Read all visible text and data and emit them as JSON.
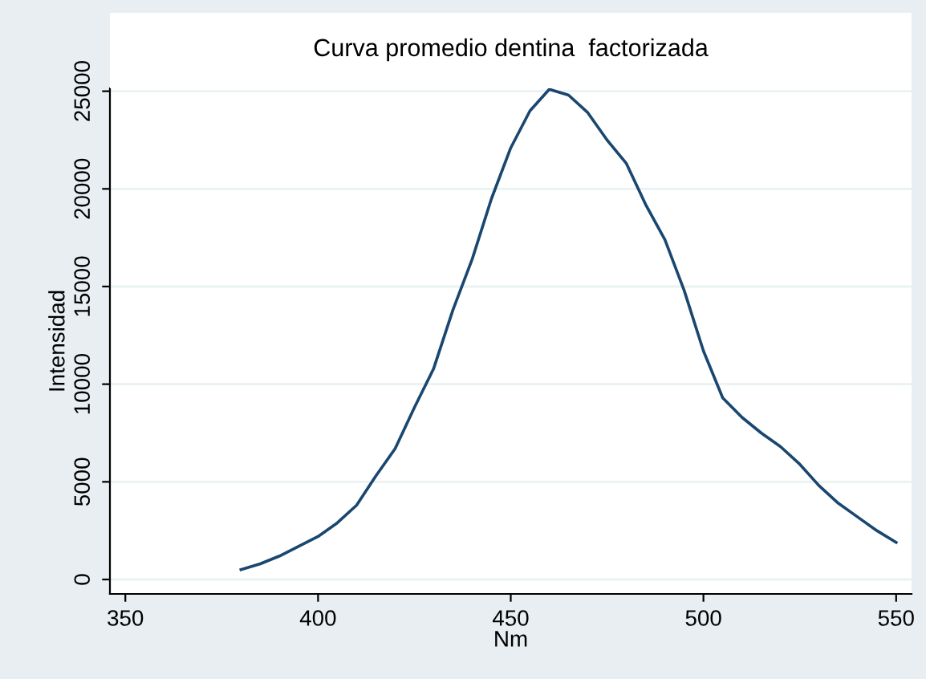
{
  "chart_data": {
    "type": "line",
    "title": "Curva promedio dentina  factorizada",
    "xlabel": "Nm",
    "ylabel": "Intensidad",
    "x": [
      380,
      385,
      390,
      395,
      400,
      405,
      410,
      415,
      420,
      425,
      430,
      435,
      440,
      445,
      450,
      455,
      460,
      465,
      470,
      475,
      480,
      485,
      490,
      495,
      500,
      505,
      510,
      515,
      520,
      525,
      530,
      535,
      540,
      545,
      550
    ],
    "series": [
      {
        "color": "#1a476f",
        "values": [
          500,
          800,
          1200,
          1700,
          2200,
          2900,
          3800,
          5300,
          6700,
          8800,
          10800,
          13800,
          16400,
          19500,
          22100,
          24000,
          25100,
          24800,
          23900,
          22500,
          21300,
          19200,
          17400,
          14800,
          11700,
          9300,
          8300,
          7500,
          6800,
          5900,
          4800,
          3900,
          3200,
          2500,
          1900
        ]
      }
    ],
    "xlim": [
      346,
      554
    ],
    "xticks": [
      350,
      400,
      450,
      500,
      550
    ],
    "ylim": [
      -740,
      25150
    ],
    "yticks": [
      0,
      5000,
      10000,
      15000,
      20000,
      25000
    ],
    "grid": "y",
    "legend": false,
    "marker": "none",
    "line_style": "solid"
  }
}
